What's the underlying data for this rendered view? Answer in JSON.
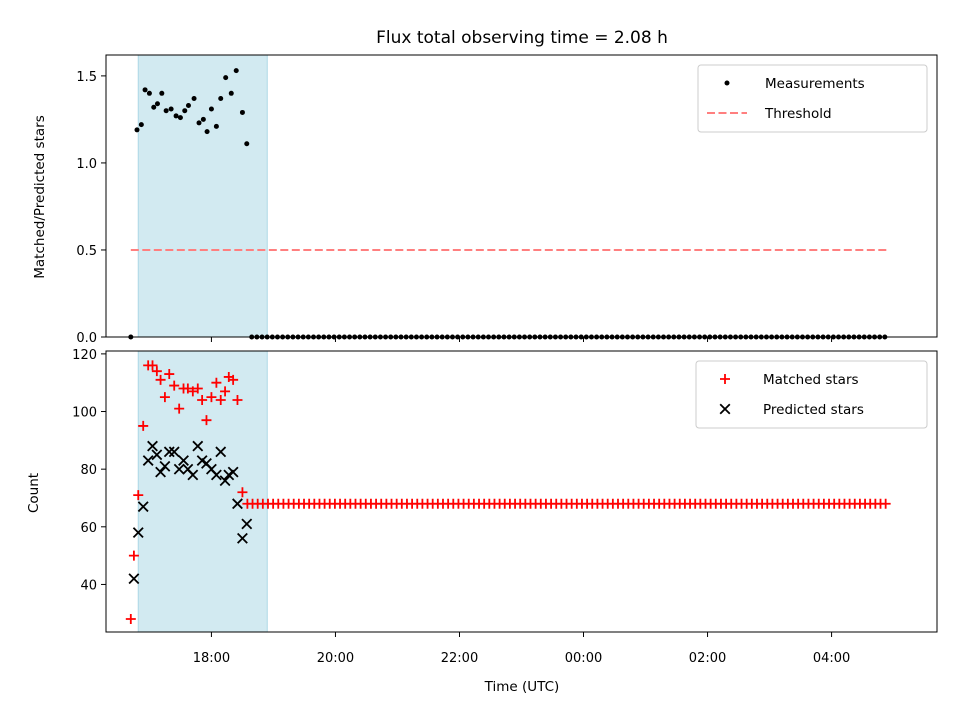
{
  "chart_data": {
    "title": "Flux total observing time = 2.08 h",
    "xlabel": "Time (UTC)",
    "x_ticks": [
      "18:00",
      "20:00",
      "22:00",
      "00:00",
      "02:00",
      "04:00"
    ],
    "x_tick_hours": [
      18,
      20,
      22,
      24,
      26,
      28
    ],
    "xlim": [
      16.3,
      29.7
    ],
    "shaded_interval": [
      16.82,
      18.9
    ],
    "colors": {
      "shade": "#add8e6",
      "measurements": "#000000",
      "threshold": "#ff7f7f",
      "matched": "#ff0000",
      "predicted": "#000000"
    },
    "panels": [
      {
        "type": "scatter",
        "ylabel": "Matched/Predicted stars",
        "ylim": [
          0,
          1.62
        ],
        "y_ticks": [
          "0.0",
          "0.5",
          "1.0",
          "1.5"
        ],
        "y_tick_values": [
          0,
          0.5,
          1.0,
          1.5
        ],
        "legend": [
          "Measurements",
          "Threshold"
        ],
        "legend_placement": "top-right",
        "threshold": {
          "value": 0.5,
          "x_range": [
            16.7,
            28.9
          ]
        },
        "series": [
          {
            "name": "Measurements",
            "marker": "dot",
            "points": [
              [
                16.7,
                0
              ],
              [
                16.8,
                1.19
              ],
              [
                16.87,
                1.22
              ],
              [
                16.93,
                1.42
              ],
              [
                17.0,
                1.4
              ],
              [
                17.07,
                1.32
              ],
              [
                17.13,
                1.34
              ],
              [
                17.2,
                1.4
              ],
              [
                17.27,
                1.3
              ],
              [
                17.35,
                1.31
              ],
              [
                17.43,
                1.27
              ],
              [
                17.5,
                1.26
              ],
              [
                17.57,
                1.3
              ],
              [
                17.63,
                1.33
              ],
              [
                17.72,
                1.37
              ],
              [
                17.8,
                1.23
              ],
              [
                17.87,
                1.25
              ],
              [
                17.93,
                1.18
              ],
              [
                18.0,
                1.31
              ],
              [
                18.08,
                1.21
              ],
              [
                18.15,
                1.37
              ],
              [
                18.23,
                1.49
              ],
              [
                18.32,
                1.4
              ],
              [
                18.4,
                1.53
              ],
              [
                18.5,
                1.29
              ],
              [
                18.57,
                1.11
              ]
            ],
            "flat_tail": {
              "y": 0,
              "x_start": 18.65,
              "x_end": 28.87,
              "step": 0.083
            }
          }
        ]
      },
      {
        "type": "scatter",
        "ylabel": "Count",
        "ylim": [
          23.5,
          121
        ],
        "y_ticks": [
          "40",
          "60",
          "80",
          "100",
          "120"
        ],
        "y_tick_values": [
          40,
          60,
          80,
          100,
          120
        ],
        "legend": [
          "Matched stars",
          "Predicted stars"
        ],
        "legend_placement": "top-right",
        "series": [
          {
            "name": "Matched stars",
            "marker": "plus",
            "points": [
              [
                16.7,
                28
              ],
              [
                16.75,
                50
              ],
              [
                16.82,
                71
              ],
              [
                16.9,
                95
              ],
              [
                16.98,
                116
              ],
              [
                17.05,
                116
              ],
              [
                17.12,
                114
              ],
              [
                17.18,
                111
              ],
              [
                17.25,
                105
              ],
              [
                17.32,
                113
              ],
              [
                17.4,
                109
              ],
              [
                17.48,
                101
              ],
              [
                17.55,
                108
              ],
              [
                17.62,
                108
              ],
              [
                17.7,
                107
              ],
              [
                17.78,
                108
              ],
              [
                17.85,
                104
              ],
              [
                17.92,
                97
              ],
              [
                18.0,
                105
              ],
              [
                18.08,
                110
              ],
              [
                18.15,
                104
              ],
              [
                18.22,
                107
              ],
              [
                18.28,
                112
              ],
              [
                18.35,
                111
              ],
              [
                18.42,
                104
              ],
              [
                18.5,
                72
              ]
            ],
            "flat_tail": {
              "y": 68,
              "x_start": 18.58,
              "x_end": 28.9,
              "step": 0.083
            }
          },
          {
            "name": "Predicted stars",
            "marker": "x",
            "points": [
              [
                16.75,
                42
              ],
              [
                16.82,
                58
              ],
              [
                16.9,
                67
              ],
              [
                16.98,
                83
              ],
              [
                17.05,
                88
              ],
              [
                17.12,
                85
              ],
              [
                17.18,
                79
              ],
              [
                17.25,
                81
              ],
              [
                17.32,
                86
              ],
              [
                17.4,
                86
              ],
              [
                17.48,
                80
              ],
              [
                17.55,
                83
              ],
              [
                17.62,
                80
              ],
              [
                17.7,
                78
              ],
              [
                17.78,
                88
              ],
              [
                17.85,
                83
              ],
              [
                17.92,
                82
              ],
              [
                18.0,
                80
              ],
              [
                18.08,
                78
              ],
              [
                18.15,
                86
              ],
              [
                18.22,
                76
              ],
              [
                18.28,
                78
              ],
              [
                18.35,
                79
              ],
              [
                18.42,
                68
              ],
              [
                18.5,
                56
              ],
              [
                18.57,
                61
              ]
            ]
          }
        ]
      }
    ]
  }
}
